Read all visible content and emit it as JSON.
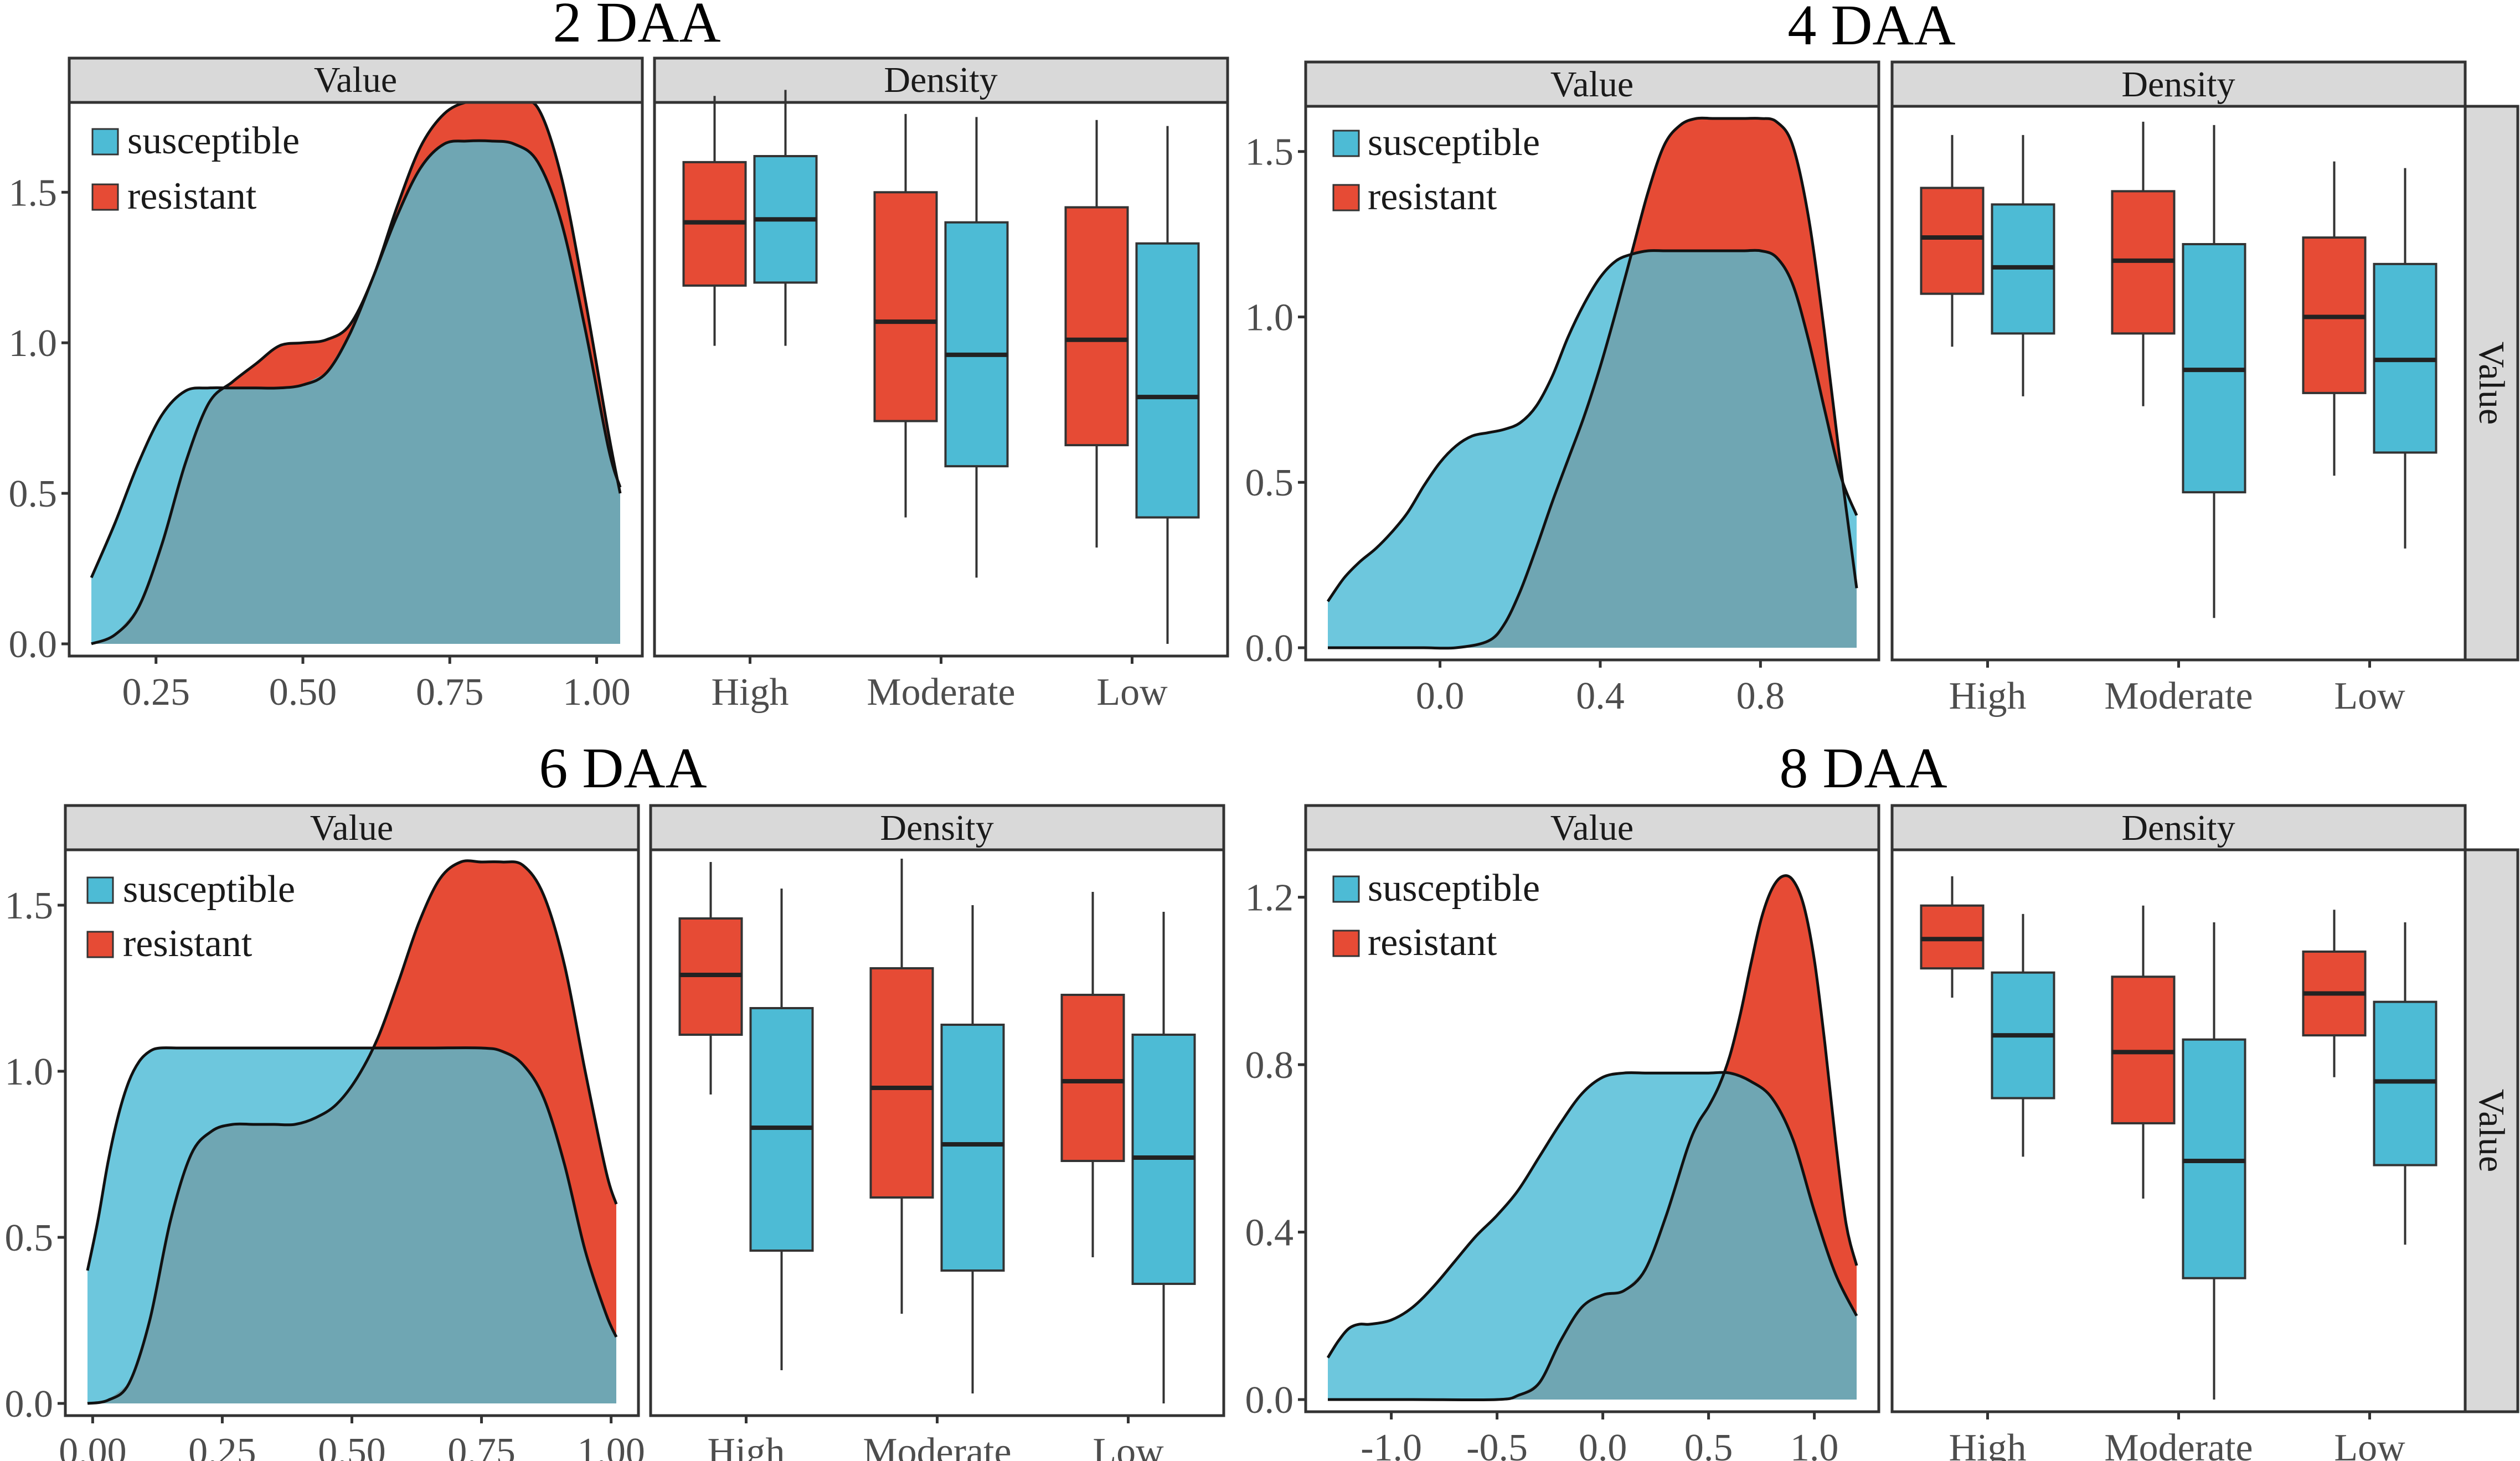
{
  "colors": {
    "resistant": "#e64b35",
    "susceptible": "#4dbbd5",
    "overlap": "#6fa6b3",
    "strip": "#d9d9d9"
  },
  "labels": {
    "value": "Value",
    "density": "Density",
    "side": "Value"
  },
  "legend": {
    "susceptible": "susceptible",
    "resistant": "resistant"
  },
  "chart_data": [
    {
      "title": "2 DAA",
      "type": "area+box",
      "density_panel": {
        "xlim": [
          0.14,
          1.04
        ],
        "ylim": [
          0,
          1.78
        ],
        "xticks": [
          0.25,
          0.5,
          0.75,
          1.0
        ],
        "xtick_labels": [
          "0.25",
          "0.50",
          "0.75",
          "1.00"
        ],
        "yticks": [
          0,
          0.5,
          1.0,
          1.5
        ],
        "ytick_labels": [
          "0.0",
          "0.5",
          "1.0",
          "1.5"
        ],
        "series": [
          {
            "name": "resistant",
            "x": [
              0.14,
              0.18,
              0.22,
              0.26,
              0.3,
              0.34,
              0.38,
              0.42,
              0.46,
              0.5,
              0.54,
              0.58,
              0.62,
              0.66,
              0.7,
              0.74,
              0.78,
              0.82,
              0.86,
              0.9,
              0.94,
              0.98,
              1.02,
              1.04
            ],
            "y": [
              0.0,
              0.03,
              0.12,
              0.33,
              0.6,
              0.8,
              0.87,
              0.93,
              0.99,
              1.0,
              1.01,
              1.06,
              1.22,
              1.45,
              1.65,
              1.76,
              1.8,
              1.8,
              1.8,
              1.78,
              1.55,
              1.15,
              0.7,
              0.5
            ]
          },
          {
            "name": "susceptible",
            "x": [
              0.14,
              0.18,
              0.22,
              0.26,
              0.3,
              0.34,
              0.38,
              0.42,
              0.46,
              0.5,
              0.54,
              0.58,
              0.62,
              0.66,
              0.7,
              0.74,
              0.78,
              0.82,
              0.86,
              0.9,
              0.94,
              0.98,
              1.02,
              1.04
            ],
            "y": [
              0.22,
              0.4,
              0.6,
              0.76,
              0.84,
              0.85,
              0.85,
              0.85,
              0.85,
              0.86,
              0.9,
              1.03,
              1.22,
              1.42,
              1.58,
              1.66,
              1.67,
              1.67,
              1.66,
              1.6,
              1.4,
              1.05,
              0.65,
              0.52
            ]
          }
        ]
      },
      "box_panel": {
        "categories": [
          "High",
          "Moderate",
          "Low"
        ],
        "series": [
          {
            "name": "resistant",
            "boxes": [
              {
                "min": 0.99,
                "q1": 1.19,
                "median": 1.4,
                "q3": 1.6,
                "max": 1.82
              },
              {
                "min": 0.42,
                "q1": 0.74,
                "median": 1.07,
                "q3": 1.5,
                "max": 1.76
              },
              {
                "min": 0.32,
                "q1": 0.66,
                "median": 1.01,
                "q3": 1.45,
                "max": 1.74
              }
            ]
          },
          {
            "name": "susceptible",
            "boxes": [
              {
                "min": 0.99,
                "q1": 1.2,
                "median": 1.41,
                "q3": 1.62,
                "max": 1.84
              },
              {
                "min": 0.22,
                "q1": 0.59,
                "median": 0.96,
                "q3": 1.4,
                "max": 1.75
              },
              {
                "min": 0.0,
                "q1": 0.42,
                "median": 0.82,
                "q3": 1.33,
                "max": 1.72
              }
            ]
          }
        ]
      }
    },
    {
      "title": "4 DAA",
      "type": "area+box",
      "density_panel": {
        "xlim": [
          -0.28,
          1.04
        ],
        "ylim": [
          0,
          1.62
        ],
        "xticks": [
          0.0,
          0.4,
          0.8
        ],
        "xtick_labels": [
          "0.0",
          "0.4",
          "0.8"
        ],
        "yticks": [
          0,
          0.5,
          1.0,
          1.5
        ],
        "ytick_labels": [
          "0.0",
          "0.5",
          "1.0",
          "1.5"
        ],
        "series": [
          {
            "name": "resistant",
            "x": [
              -0.28,
              -0.2,
              -0.12,
              -0.04,
              0.04,
              0.12,
              0.16,
              0.2,
              0.24,
              0.28,
              0.32,
              0.36,
              0.4,
              0.44,
              0.48,
              0.52,
              0.56,
              0.6,
              0.64,
              0.68,
              0.72,
              0.76,
              0.8,
              0.84,
              0.88,
              0.92,
              0.96,
              1.0,
              1.04
            ],
            "y": [
              0,
              0,
              0,
              0,
              0,
              0.02,
              0.07,
              0.17,
              0.3,
              0.44,
              0.57,
              0.7,
              0.85,
              1.02,
              1.2,
              1.38,
              1.52,
              1.58,
              1.6,
              1.6,
              1.6,
              1.6,
              1.6,
              1.59,
              1.52,
              1.3,
              0.95,
              0.55,
              0.18
            ]
          },
          {
            "name": "susceptible",
            "x": [
              -0.28,
              -0.24,
              -0.2,
              -0.16,
              -0.12,
              -0.08,
              -0.04,
              0.0,
              0.04,
              0.08,
              0.12,
              0.16,
              0.2,
              0.24,
              0.28,
              0.32,
              0.36,
              0.4,
              0.44,
              0.48,
              0.52,
              0.56,
              0.6,
              0.64,
              0.68,
              0.72,
              0.76,
              0.8,
              0.84,
              0.88,
              0.92,
              0.96,
              1.0,
              1.04
            ],
            "y": [
              0.14,
              0.21,
              0.26,
              0.3,
              0.35,
              0.41,
              0.49,
              0.56,
              0.61,
              0.64,
              0.65,
              0.66,
              0.68,
              0.73,
              0.82,
              0.94,
              1.04,
              1.12,
              1.17,
              1.19,
              1.2,
              1.2,
              1.2,
              1.2,
              1.2,
              1.2,
              1.2,
              1.2,
              1.18,
              1.1,
              0.93,
              0.72,
              0.52,
              0.4
            ]
          }
        ]
      },
      "box_panel": {
        "categories": [
          "High",
          "Moderate",
          "Low"
        ],
        "series": [
          {
            "name": "resistant",
            "boxes": [
              {
                "min": 0.91,
                "q1": 1.07,
                "median": 1.24,
                "q3": 1.39,
                "max": 1.55
              },
              {
                "min": 0.73,
                "q1": 0.95,
                "median": 1.17,
                "q3": 1.38,
                "max": 1.59
              },
              {
                "min": 0.52,
                "q1": 0.77,
                "median": 1.0,
                "q3": 1.24,
                "max": 1.47
              }
            ]
          },
          {
            "name": "susceptible",
            "boxes": [
              {
                "min": 0.76,
                "q1": 0.95,
                "median": 1.15,
                "q3": 1.34,
                "max": 1.55
              },
              {
                "min": 0.09,
                "q1": 0.47,
                "median": 0.84,
                "q3": 1.22,
                "max": 1.58
              },
              {
                "min": 0.3,
                "q1": 0.59,
                "median": 0.87,
                "q3": 1.16,
                "max": 1.45
              }
            ]
          }
        ]
      }
    },
    {
      "title": "6 DAA",
      "type": "area+box",
      "density_panel": {
        "xlim": [
          -0.01,
          1.01
        ],
        "ylim": [
          0,
          1.65
        ],
        "xticks": [
          0.0,
          0.25,
          0.5,
          0.75,
          1.0
        ],
        "xtick_labels": [
          "0.00",
          "0.25",
          "0.50",
          "0.75",
          "1.00"
        ],
        "yticks": [
          0,
          0.5,
          1.0,
          1.5
        ],
        "ytick_labels": [
          "0.0",
          "0.5",
          "1.0",
          "1.5"
        ],
        "series": [
          {
            "name": "resistant",
            "x": [
              -0.01,
              0.03,
              0.07,
              0.11,
              0.15,
              0.19,
              0.23,
              0.27,
              0.31,
              0.35,
              0.39,
              0.43,
              0.47,
              0.51,
              0.55,
              0.59,
              0.63,
              0.67,
              0.71,
              0.75,
              0.79,
              0.83,
              0.87,
              0.91,
              0.95,
              0.99,
              1.01
            ],
            "y": [
              0,
              0.01,
              0.06,
              0.25,
              0.55,
              0.75,
              0.82,
              0.84,
              0.84,
              0.84,
              0.84,
              0.86,
              0.9,
              0.98,
              1.1,
              1.27,
              1.45,
              1.58,
              1.63,
              1.63,
              1.63,
              1.62,
              1.53,
              1.32,
              1.0,
              0.7,
              0.6
            ]
          },
          {
            "name": "susceptible",
            "x": [
              -0.01,
              0.01,
              0.03,
              0.05,
              0.07,
              0.09,
              0.11,
              0.13,
              0.17,
              0.25,
              0.35,
              0.45,
              0.55,
              0.65,
              0.75,
              0.79,
              0.83,
              0.87,
              0.91,
              0.95,
              0.99,
              1.01
            ],
            "y": [
              0.4,
              0.55,
              0.73,
              0.87,
              0.97,
              1.03,
              1.06,
              1.07,
              1.07,
              1.07,
              1.07,
              1.07,
              1.07,
              1.07,
              1.07,
              1.06,
              1.02,
              0.92,
              0.72,
              0.46,
              0.27,
              0.2
            ]
          }
        ]
      },
      "box_panel": {
        "categories": [
          "High",
          "Moderate",
          "Low"
        ],
        "series": [
          {
            "name": "resistant",
            "boxes": [
              {
                "min": 0.93,
                "q1": 1.11,
                "median": 1.29,
                "q3": 1.46,
                "max": 1.63
              },
              {
                "min": 0.27,
                "q1": 0.62,
                "median": 0.95,
                "q3": 1.31,
                "max": 1.64
              },
              {
                "min": 0.44,
                "q1": 0.73,
                "median": 0.97,
                "q3": 1.23,
                "max": 1.54
              }
            ]
          },
          {
            "name": "susceptible",
            "boxes": [
              {
                "min": 0.1,
                "q1": 0.46,
                "median": 0.83,
                "q3": 1.19,
                "max": 1.55
              },
              {
                "min": 0.03,
                "q1": 0.4,
                "median": 0.78,
                "q3": 1.14,
                "max": 1.5
              },
              {
                "min": 0.0,
                "q1": 0.36,
                "median": 0.74,
                "q3": 1.11,
                "max": 1.48
              }
            ]
          }
        ]
      }
    },
    {
      "title": "8 DAA",
      "type": "area+box",
      "density_panel": {
        "xlim": [
          -1.3,
          1.2
        ],
        "ylim": [
          0,
          1.3
        ],
        "xticks": [
          -1.0,
          -0.5,
          0.0,
          0.5,
          1.0
        ],
        "xtick_labels": [
          "-1.0",
          "-0.5",
          "0.0",
          "0.5",
          "1.0"
        ],
        "yticks": [
          0,
          0.4,
          0.8,
          1.2
        ],
        "ytick_labels": [
          "0.0",
          "0.4",
          "0.8",
          "1.2"
        ],
        "series": [
          {
            "name": "resistant",
            "x": [
              -1.3,
              -0.9,
              -0.5,
              -0.4,
              -0.3,
              -0.2,
              -0.1,
              0.0,
              0.1,
              0.2,
              0.3,
              0.4,
              0.45,
              0.5,
              0.55,
              0.6,
              0.65,
              0.7,
              0.75,
              0.8,
              0.85,
              0.9,
              0.95,
              1.0,
              1.05,
              1.1,
              1.15,
              1.2
            ],
            "y": [
              0,
              0,
              0,
              0.01,
              0.04,
              0.14,
              0.22,
              0.25,
              0.26,
              0.31,
              0.44,
              0.6,
              0.66,
              0.7,
              0.75,
              0.82,
              0.92,
              1.04,
              1.15,
              1.22,
              1.25,
              1.24,
              1.18,
              1.05,
              0.85,
              0.62,
              0.42,
              0.32
            ]
          },
          {
            "name": "susceptible",
            "x": [
              -1.3,
              -1.25,
              -1.2,
              -1.15,
              -1.1,
              -1.0,
              -0.9,
              -0.8,
              -0.7,
              -0.6,
              -0.5,
              -0.4,
              -0.3,
              -0.2,
              -0.1,
              0.0,
              0.1,
              0.2,
              0.3,
              0.4,
              0.5,
              0.6,
              0.7,
              0.8,
              0.9,
              1.0,
              1.1,
              1.2
            ],
            "y": [
              0.1,
              0.14,
              0.17,
              0.18,
              0.18,
              0.19,
              0.22,
              0.27,
              0.33,
              0.39,
              0.44,
              0.5,
              0.58,
              0.66,
              0.73,
              0.77,
              0.78,
              0.78,
              0.78,
              0.78,
              0.78,
              0.78,
              0.76,
              0.72,
              0.62,
              0.45,
              0.3,
              0.2
            ]
          }
        ]
      },
      "box_panel": {
        "categories": [
          "High",
          "Moderate",
          "Low"
        ],
        "series": [
          {
            "name": "resistant",
            "boxes": [
              {
                "min": 0.96,
                "q1": 1.03,
                "median": 1.1,
                "q3": 1.18,
                "max": 1.25
              },
              {
                "min": 0.48,
                "q1": 0.66,
                "median": 0.83,
                "q3": 1.01,
                "max": 1.18
              },
              {
                "min": 0.77,
                "q1": 0.87,
                "median": 0.97,
                "q3": 1.07,
                "max": 1.17
              }
            ]
          },
          {
            "name": "susceptible",
            "boxes": [
              {
                "min": 0.58,
                "q1": 0.72,
                "median": 0.87,
                "q3": 1.02,
                "max": 1.16
              },
              {
                "min": 0.0,
                "q1": 0.29,
                "median": 0.57,
                "q3": 0.86,
                "max": 1.14
              },
              {
                "min": 0.37,
                "q1": 0.56,
                "median": 0.76,
                "q3": 0.95,
                "max": 1.14
              }
            ]
          }
        ]
      }
    }
  ]
}
